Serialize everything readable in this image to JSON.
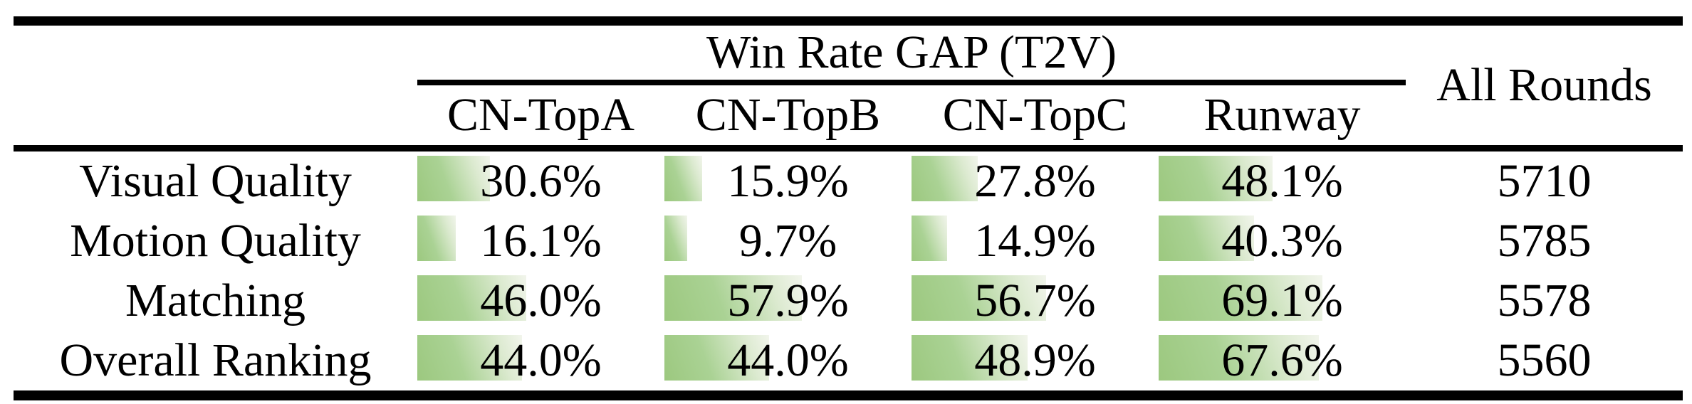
{
  "table": {
    "group_header": "Win Rate GAP (T2V)",
    "all_rounds_header": "All Rounds",
    "columns": [
      "CN-TopA",
      "CN-TopB",
      "CN-TopC",
      "Runway"
    ],
    "rows": [
      {
        "label": "Visual Quality",
        "values": [
          "30.6%",
          "15.9%",
          "27.8%",
          "48.1%"
        ],
        "all_rounds": "5710"
      },
      {
        "label": "Motion Quality",
        "values": [
          "16.1%",
          "9.7%",
          "14.9%",
          "40.3%"
        ],
        "all_rounds": "5785"
      },
      {
        "label": "Matching",
        "values": [
          "46.0%",
          "57.9%",
          "56.7%",
          "69.1%"
        ],
        "all_rounds": "5578"
      },
      {
        "label": "Overall Ranking",
        "values": [
          "44.0%",
          "44.0%",
          "48.9%",
          "67.6%"
        ],
        "all_rounds": "5560"
      }
    ]
  },
  "colors": {
    "background": "#ffffff",
    "text": "#000000",
    "rule": "#000000",
    "bar_gradient_start": "#9cc87f",
    "bar_gradient_mid": "#aad294",
    "bar_gradient_end": "#f2f5ec"
  },
  "chart_data": {
    "type": "bar",
    "title": "Win Rate GAP (T2V)",
    "categories": [
      "Visual Quality",
      "Motion Quality",
      "Matching",
      "Overall Ranking"
    ],
    "series": [
      {
        "name": "CN-TopA",
        "values": [
          30.6,
          16.1,
          46.0,
          44.0
        ]
      },
      {
        "name": "CN-TopB",
        "values": [
          15.9,
          9.7,
          57.9,
          44.0
        ]
      },
      {
        "name": "CN-TopC",
        "values": [
          27.8,
          14.9,
          56.7,
          48.9
        ]
      },
      {
        "name": "Runway",
        "values": [
          48.1,
          40.3,
          69.1,
          67.6
        ]
      }
    ],
    "all_rounds": [
      5710,
      5785,
      5578,
      5560
    ],
    "unit": "percent",
    "xlim": [
      0,
      104
    ]
  }
}
